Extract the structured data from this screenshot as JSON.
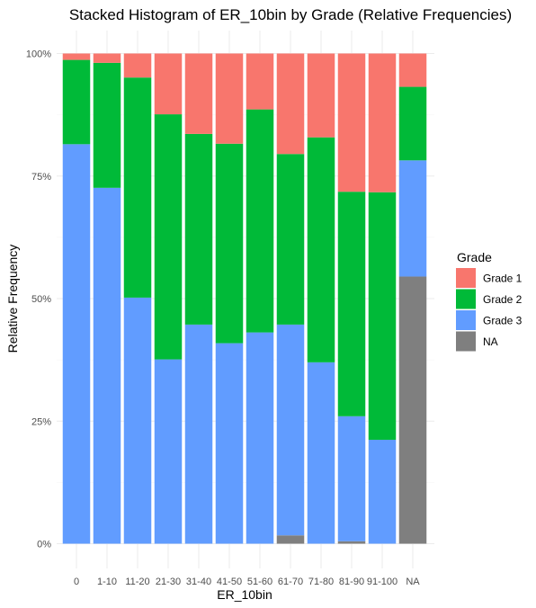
{
  "chart_data": {
    "type": "bar",
    "stacked": true,
    "title": "Stacked Histogram of ER_10bin by Grade (Relative Frequencies)",
    "xlabel": "ER_10bin",
    "ylabel": "Relative Frequency",
    "ylim": [
      0,
      1
    ],
    "y_ticks": [
      0,
      0.25,
      0.5,
      0.75,
      1
    ],
    "y_tick_labels": [
      "0%",
      "25%",
      "50%",
      "75%",
      "100%"
    ],
    "categories": [
      "0",
      "1-10",
      "11-20",
      "21-30",
      "31-40",
      "41-50",
      "51-60",
      "61-70",
      "71-80",
      "81-90",
      "91-100",
      "NA"
    ],
    "legend": {
      "title": "Grade",
      "position": "right"
    },
    "grid": true,
    "series": [
      {
        "name": "NA",
        "color": "#7f7f7f",
        "values": [
          0,
          0,
          0,
          0,
          0,
          0,
          0,
          0.017,
          0,
          0.005,
          0,
          0.545
        ]
      },
      {
        "name": "Grade 3",
        "color": "#619cff",
        "values": [
          0.815,
          0.726,
          0.502,
          0.376,
          0.447,
          0.409,
          0.431,
          0.43,
          0.37,
          0.255,
          0.212,
          0.237
        ]
      },
      {
        "name": "Grade 2",
        "color": "#00ba38",
        "values": [
          0.172,
          0.255,
          0.449,
          0.5,
          0.389,
          0.407,
          0.455,
          0.348,
          0.459,
          0.458,
          0.505,
          0.15
        ]
      },
      {
        "name": "Grade 1",
        "color": "#f8766d",
        "values": [
          0.013,
          0.019,
          0.049,
          0.124,
          0.164,
          0.184,
          0.114,
          0.205,
          0.171,
          0.282,
          0.283,
          0.068
        ]
      }
    ],
    "legend_order": [
      "Grade 1",
      "Grade 2",
      "Grade 3",
      "NA"
    ]
  }
}
